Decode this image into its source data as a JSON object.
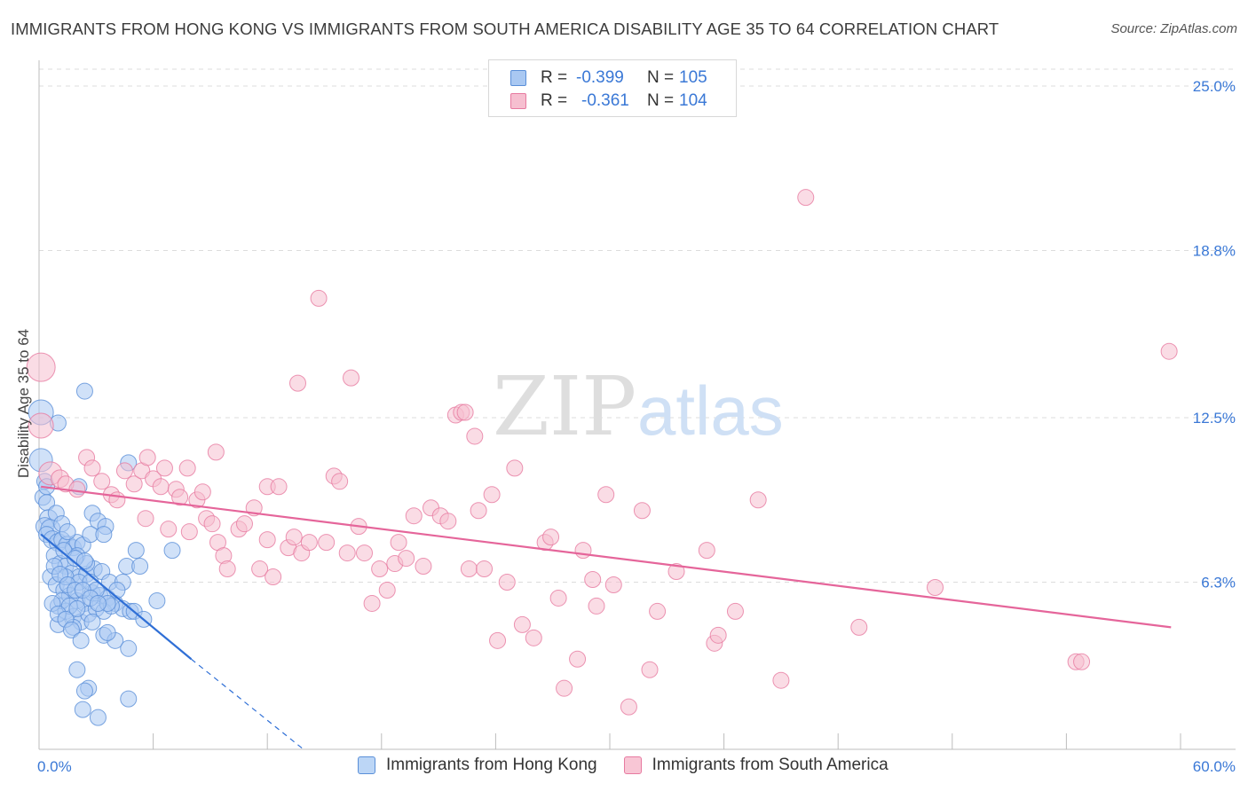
{
  "title": "IMMIGRANTS FROM HONG KONG VS IMMIGRANTS FROM SOUTH AMERICA DISABILITY AGE 35 TO 64 CORRELATION CHART",
  "source": "Source: ZipAtlas.com",
  "watermark": {
    "zip": "ZIP",
    "atlas": "atlas"
  },
  "legend": {
    "r_label": "R =",
    "n_label": "N =",
    "rows": [
      {
        "r": "-0.399",
        "n": "105",
        "color": "#a9c8f2",
        "border": "#5a8fd8"
      },
      {
        "r": "-0.361",
        "n": "104",
        "color": "#f6bfd0",
        "border": "#e77aa0"
      }
    ]
  },
  "bottom_legend": [
    {
      "label": "Immigrants from Hong Kong",
      "color": "#bcd6f6",
      "border": "#5a8fd8"
    },
    {
      "label": "Immigrants from South America",
      "color": "#f8c6d5",
      "border": "#e77aa0"
    }
  ],
  "chart_data": {
    "type": "scatter",
    "xlabel": "",
    "ylabel": "Disability Age 35 to 64",
    "xlim": [
      0,
      60
    ],
    "ylim": [
      0,
      25.0
    ],
    "x_tick_labels": [
      "0.0%",
      "60.0%"
    ],
    "y_ticks": [
      6.3,
      12.5,
      18.8,
      25.0
    ],
    "y_tick_labels": [
      "6.3%",
      "12.5%",
      "18.8%",
      "25.0%"
    ],
    "grid": true,
    "series": [
      {
        "name": "Immigrants from Hong Kong",
        "color": "#5a8fd8",
        "fill": "#a9c8f2",
        "trend": {
          "x0": 0.1,
          "y0": 8.1,
          "x1": 8.0,
          "y1": 3.4,
          "dash_x1": 13.9,
          "dash_y1": 0.0,
          "color": "#2f6fd6"
        },
        "points": [
          [
            0.1,
            12.7,
            14
          ],
          [
            0.1,
            10.9,
            13
          ],
          [
            0.3,
            10.1,
            9
          ],
          [
            0.2,
            9.5,
            9
          ],
          [
            0.4,
            9.3,
            9
          ],
          [
            0.5,
            8.7,
            10
          ],
          [
            0.3,
            8.4,
            10
          ],
          [
            0.6,
            8.3,
            11
          ],
          [
            0.4,
            8.1,
            9
          ],
          [
            0.7,
            7.9,
            10
          ],
          [
            1.0,
            7.8,
            10
          ],
          [
            1.2,
            7.9,
            9
          ],
          [
            1.5,
            7.7,
            10
          ],
          [
            1.8,
            7.6,
            9
          ],
          [
            2.0,
            7.8,
            9
          ],
          [
            2.3,
            7.7,
            9
          ],
          [
            0.8,
            7.3,
            9
          ],
          [
            1.1,
            7.0,
            9
          ],
          [
            1.4,
            6.9,
            9
          ],
          [
            1.7,
            6.6,
            10
          ],
          [
            2.1,
            6.5,
            9
          ],
          [
            2.5,
            6.6,
            9
          ],
          [
            2.9,
            6.8,
            9
          ],
          [
            3.3,
            6.7,
            9
          ],
          [
            0.6,
            6.5,
            9
          ],
          [
            0.9,
            6.2,
            9
          ],
          [
            1.3,
            6.0,
            9
          ],
          [
            1.6,
            5.8,
            9
          ],
          [
            2.0,
            5.6,
            9
          ],
          [
            2.4,
            5.5,
            9
          ],
          [
            2.8,
            5.9,
            9
          ],
          [
            3.2,
            5.8,
            9
          ],
          [
            3.6,
            5.7,
            9
          ],
          [
            4.0,
            5.5,
            9
          ],
          [
            4.4,
            5.3,
            9
          ],
          [
            4.8,
            5.2,
            9
          ],
          [
            1.0,
            5.4,
            9
          ],
          [
            1.4,
            5.2,
            9
          ],
          [
            1.8,
            5.0,
            9
          ],
          [
            2.2,
            4.8,
            9
          ],
          [
            2.6,
            5.1,
            9
          ],
          [
            3.0,
            5.3,
            9
          ],
          [
            3.4,
            5.2,
            9
          ],
          [
            3.8,
            5.4,
            9
          ],
          [
            1.0,
            4.7,
            9
          ],
          [
            1.8,
            4.6,
            9
          ],
          [
            3.4,
            4.3,
            9
          ],
          [
            4.0,
            4.1,
            9
          ],
          [
            4.7,
            3.8,
            9
          ],
          [
            2.0,
            3.0,
            9
          ],
          [
            2.6,
            2.3,
            9
          ],
          [
            2.4,
            2.2,
            9
          ],
          [
            2.3,
            1.5,
            9
          ],
          [
            3.1,
            1.2,
            9
          ],
          [
            4.7,
            1.9,
            9
          ],
          [
            2.4,
            13.5,
            9
          ],
          [
            1.0,
            12.3,
            9
          ],
          [
            2.1,
            9.9,
            9
          ],
          [
            4.7,
            10.8,
            9
          ],
          [
            2.8,
            8.9,
            9
          ],
          [
            3.1,
            8.6,
            9
          ],
          [
            3.5,
            8.4,
            9
          ],
          [
            2.7,
            8.1,
            9
          ],
          [
            3.4,
            8.1,
            9
          ],
          [
            5.1,
            7.5,
            9
          ],
          [
            7.0,
            7.5,
            9
          ],
          [
            2.0,
            7.3,
            9
          ],
          [
            2.5,
            7.0,
            9
          ],
          [
            4.6,
            6.9,
            9
          ],
          [
            5.3,
            6.9,
            9
          ],
          [
            1.4,
            6.5,
            9
          ],
          [
            2.1,
            6.3,
            9
          ],
          [
            2.7,
            6.3,
            9
          ],
          [
            3.0,
            6.0,
            9
          ],
          [
            3.7,
            6.3,
            9
          ],
          [
            4.4,
            6.3,
            9
          ],
          [
            4.1,
            6.0,
            9
          ],
          [
            3.6,
            5.5,
            9
          ],
          [
            5.0,
            5.2,
            9
          ],
          [
            6.2,
            5.6,
            9
          ],
          [
            5.5,
            4.9,
            9
          ],
          [
            0.4,
            9.9,
            9
          ],
          [
            0.9,
            8.9,
            9
          ],
          [
            1.2,
            8.5,
            9
          ],
          [
            1.5,
            8.2,
            9
          ],
          [
            1.3,
            7.5,
            9
          ],
          [
            1.9,
            7.2,
            9
          ],
          [
            2.4,
            7.1,
            9
          ],
          [
            0.8,
            6.9,
            9
          ],
          [
            1.1,
            6.6,
            9
          ],
          [
            1.5,
            6.2,
            9
          ],
          [
            1.9,
            6.0,
            9
          ],
          [
            2.3,
            6.0,
            9
          ],
          [
            2.7,
            5.7,
            9
          ],
          [
            3.1,
            5.5,
            9
          ],
          [
            1.2,
            5.6,
            9
          ],
          [
            1.6,
            5.4,
            9
          ],
          [
            2.0,
            5.3,
            9
          ],
          [
            0.7,
            5.5,
            9
          ],
          [
            1.0,
            5.1,
            9
          ],
          [
            1.4,
            4.9,
            9
          ],
          [
            2.8,
            4.8,
            9
          ],
          [
            1.7,
            4.5,
            9
          ],
          [
            3.6,
            4.4,
            9
          ],
          [
            2.2,
            4.1,
            9
          ]
        ]
      },
      {
        "name": "Immigrants from South America",
        "color": "#e77aa0",
        "fill": "#f6bfd0",
        "trend": {
          "x0": 0.1,
          "y0": 9.9,
          "x1": 59.5,
          "y1": 4.6,
          "color": "#e5659a"
        },
        "points": [
          [
            0.1,
            14.4,
            16
          ],
          [
            0.1,
            12.2,
            14
          ],
          [
            0.6,
            10.4,
            13
          ],
          [
            1.1,
            10.2,
            10
          ],
          [
            1.4,
            10.0,
            9
          ],
          [
            2.0,
            9.8,
            9
          ],
          [
            2.5,
            11.0,
            9
          ],
          [
            2.8,
            10.6,
            9
          ],
          [
            3.3,
            10.1,
            9
          ],
          [
            3.8,
            9.6,
            9
          ],
          [
            4.1,
            9.4,
            9
          ],
          [
            4.5,
            10.5,
            9
          ],
          [
            5.0,
            10.0,
            9
          ],
          [
            5.4,
            10.5,
            9
          ],
          [
            5.6,
            8.7,
            9
          ],
          [
            5.7,
            11.0,
            9
          ],
          [
            6.0,
            10.2,
            9
          ],
          [
            6.4,
            9.9,
            9
          ],
          [
            6.6,
            10.6,
            9
          ],
          [
            6.8,
            8.3,
            9
          ],
          [
            7.2,
            9.8,
            9
          ],
          [
            7.4,
            9.5,
            9
          ],
          [
            7.9,
            8.2,
            9
          ],
          [
            7.8,
            10.6,
            9
          ],
          [
            8.3,
            9.4,
            9
          ],
          [
            8.6,
            9.7,
            9
          ],
          [
            8.8,
            8.7,
            9
          ],
          [
            9.1,
            8.5,
            9
          ],
          [
            9.4,
            7.8,
            9
          ],
          [
            9.7,
            7.3,
            9
          ],
          [
            9.9,
            6.8,
            9
          ],
          [
            9.3,
            11.2,
            9
          ],
          [
            10.5,
            8.3,
            9
          ],
          [
            10.8,
            8.5,
            9
          ],
          [
            11.3,
            9.1,
            9
          ],
          [
            11.6,
            6.8,
            9
          ],
          [
            12.0,
            7.9,
            9
          ],
          [
            12.3,
            6.5,
            9
          ],
          [
            12.0,
            9.9,
            9
          ],
          [
            12.6,
            9.9,
            9
          ],
          [
            13.1,
            7.6,
            9
          ],
          [
            13.4,
            8.0,
            9
          ],
          [
            13.6,
            13.8,
            9
          ],
          [
            13.8,
            7.4,
            9
          ],
          [
            14.2,
            7.8,
            9
          ],
          [
            14.7,
            17.0,
            9
          ],
          [
            15.1,
            7.8,
            9
          ],
          [
            15.5,
            10.3,
            9
          ],
          [
            15.8,
            10.1,
            9
          ],
          [
            16.2,
            7.4,
            9
          ],
          [
            16.4,
            14.0,
            9
          ],
          [
            16.8,
            8.4,
            9
          ],
          [
            17.1,
            7.4,
            9
          ],
          [
            17.5,
            5.5,
            9
          ],
          [
            17.9,
            6.8,
            9
          ],
          [
            18.3,
            6.0,
            9
          ],
          [
            18.7,
            7.0,
            9
          ],
          [
            18.9,
            7.8,
            9
          ],
          [
            19.3,
            7.2,
            9
          ],
          [
            19.7,
            8.8,
            9
          ],
          [
            20.2,
            6.9,
            9
          ],
          [
            20.6,
            9.1,
            9
          ],
          [
            21.1,
            8.8,
            9
          ],
          [
            21.5,
            8.6,
            9
          ],
          [
            21.9,
            12.6,
            9
          ],
          [
            22.2,
            12.7,
            9
          ],
          [
            22.6,
            6.8,
            9
          ],
          [
            22.9,
            11.8,
            9
          ],
          [
            23.1,
            9.0,
            9
          ],
          [
            23.4,
            6.8,
            9
          ],
          [
            23.8,
            9.6,
            9
          ],
          [
            24.1,
            4.1,
            9
          ],
          [
            24.6,
            6.3,
            9
          ],
          [
            25.0,
            10.6,
            9
          ],
          [
            25.4,
            4.7,
            9
          ],
          [
            26.0,
            4.2,
            9
          ],
          [
            26.6,
            7.8,
            9
          ],
          [
            26.9,
            8.0,
            9
          ],
          [
            27.3,
            5.7,
            9
          ],
          [
            27.6,
            2.3,
            9
          ],
          [
            28.3,
            3.4,
            9
          ],
          [
            28.6,
            7.5,
            9
          ],
          [
            29.1,
            6.4,
            9
          ],
          [
            29.3,
            5.4,
            9
          ],
          [
            29.8,
            9.6,
            9
          ],
          [
            30.2,
            6.2,
            9
          ],
          [
            31.0,
            1.6,
            9
          ],
          [
            31.7,
            9.0,
            9
          ],
          [
            32.1,
            3.0,
            9
          ],
          [
            32.5,
            5.2,
            9
          ],
          [
            33.5,
            6.7,
            9
          ],
          [
            35.1,
            7.5,
            9
          ],
          [
            35.5,
            4.0,
            9
          ],
          [
            35.7,
            4.3,
            9
          ],
          [
            36.6,
            5.2,
            9
          ],
          [
            37.8,
            9.4,
            9
          ],
          [
            39.0,
            2.6,
            9
          ],
          [
            40.3,
            20.8,
            9
          ],
          [
            43.1,
            4.6,
            9
          ],
          [
            47.1,
            6.1,
            9
          ],
          [
            54.5,
            3.3,
            9
          ],
          [
            54.8,
            3.3,
            9
          ],
          [
            59.4,
            15.0,
            9
          ],
          [
            22.4,
            12.7,
            9
          ]
        ]
      }
    ]
  }
}
